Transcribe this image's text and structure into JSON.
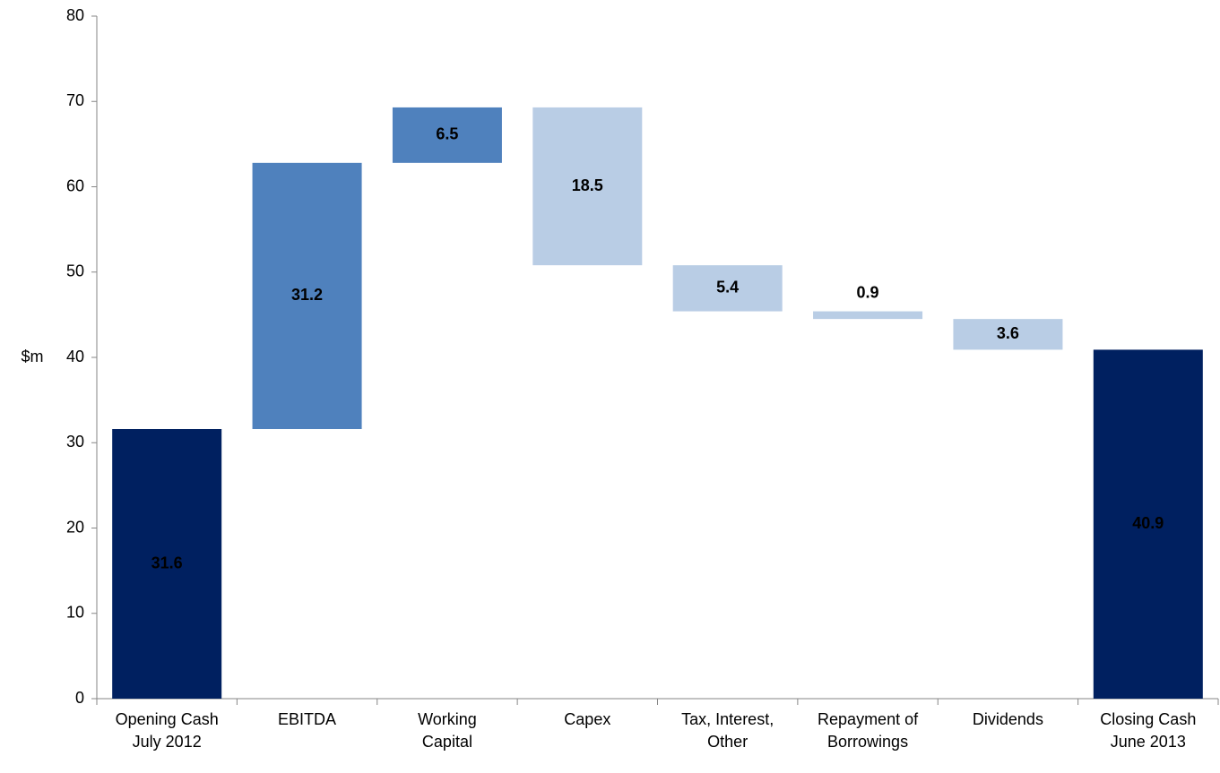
{
  "chart_data": {
    "type": "waterfall",
    "y_label": "$m",
    "categories": [
      [
        "Opening Cash",
        "July 2012"
      ],
      [
        "EBITDA"
      ],
      [
        "Working",
        "Capital"
      ],
      [
        "Capex"
      ],
      [
        "Tax, Interest,",
        "Other"
      ],
      [
        "Repayment of",
        "Borrowings"
      ],
      [
        "Dividends"
      ],
      [
        "Closing Cash",
        "June 2013"
      ]
    ],
    "values": [
      31.6,
      31.2,
      6.5,
      -18.5,
      -5.4,
      -0.9,
      -3.6,
      40.9
    ],
    "value_labels": [
      "31.6",
      "31.2",
      "6.5",
      "18.5",
      "5.4",
      "0.9",
      "3.6",
      "40.9"
    ],
    "measure": [
      "total",
      "relative",
      "relative",
      "relative",
      "relative",
      "relative",
      "relative",
      "total"
    ],
    "colors": {
      "total": "#002060",
      "increase": "#4f81bd",
      "decrease": "#b9cde5"
    },
    "label_colors": {
      "total": "#ffffff",
      "increase": "#ffffff",
      "decrease": "#000000"
    },
    "ylim": [
      0,
      80
    ],
    "yticks": [
      0,
      10,
      20,
      30,
      40,
      50,
      60,
      70,
      80
    ]
  }
}
